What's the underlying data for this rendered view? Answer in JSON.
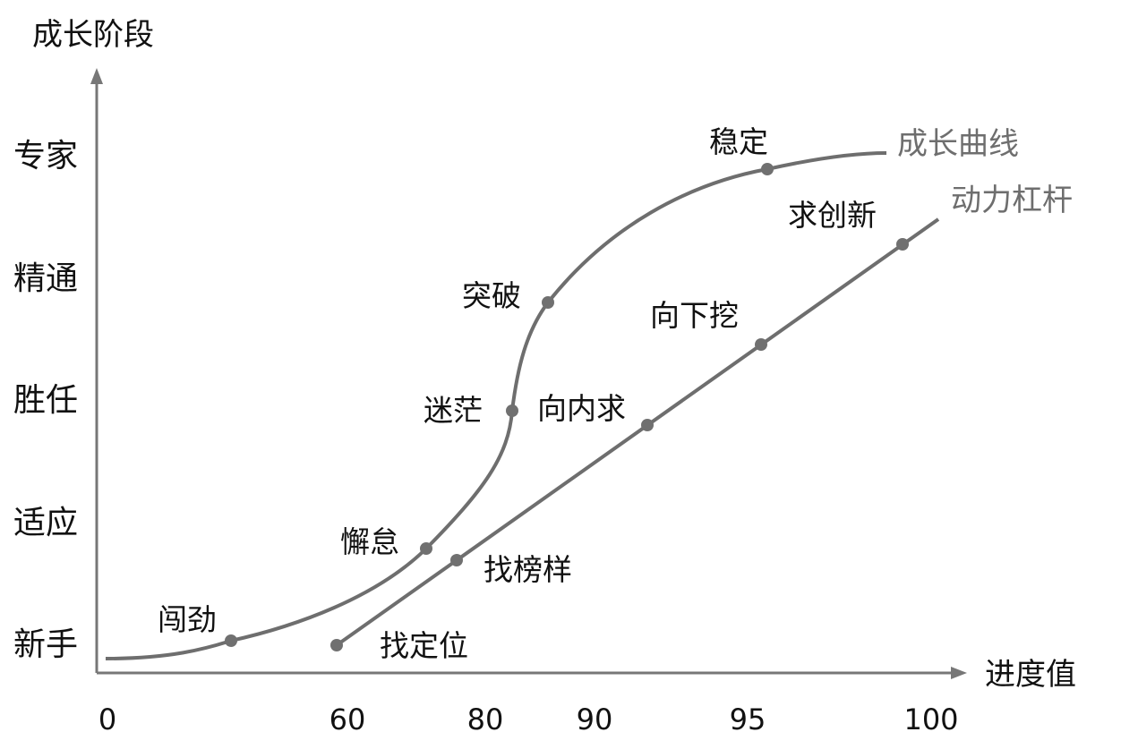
{
  "diagram": {
    "y_axis_title": "成长阶段",
    "x_axis_title": "进度值",
    "y_stages": [
      "新手",
      "适应",
      "胜任",
      "精通",
      "专家"
    ],
    "x_ticks": [
      "0",
      "60",
      "80",
      "90",
      "95",
      "100"
    ],
    "series": [
      {
        "name": "成长曲线",
        "points": [
          "闯劲",
          "懈怠",
          "迷茫",
          "突破",
          "稳定"
        ]
      },
      {
        "name": "动力杠杆",
        "points": [
          "找定位",
          "找榜样",
          "向内求",
          "向下挖",
          "求创新"
        ]
      }
    ],
    "colors": {
      "series": "#6e6e6e",
      "axis": "#777777",
      "text": "#111111"
    }
  }
}
